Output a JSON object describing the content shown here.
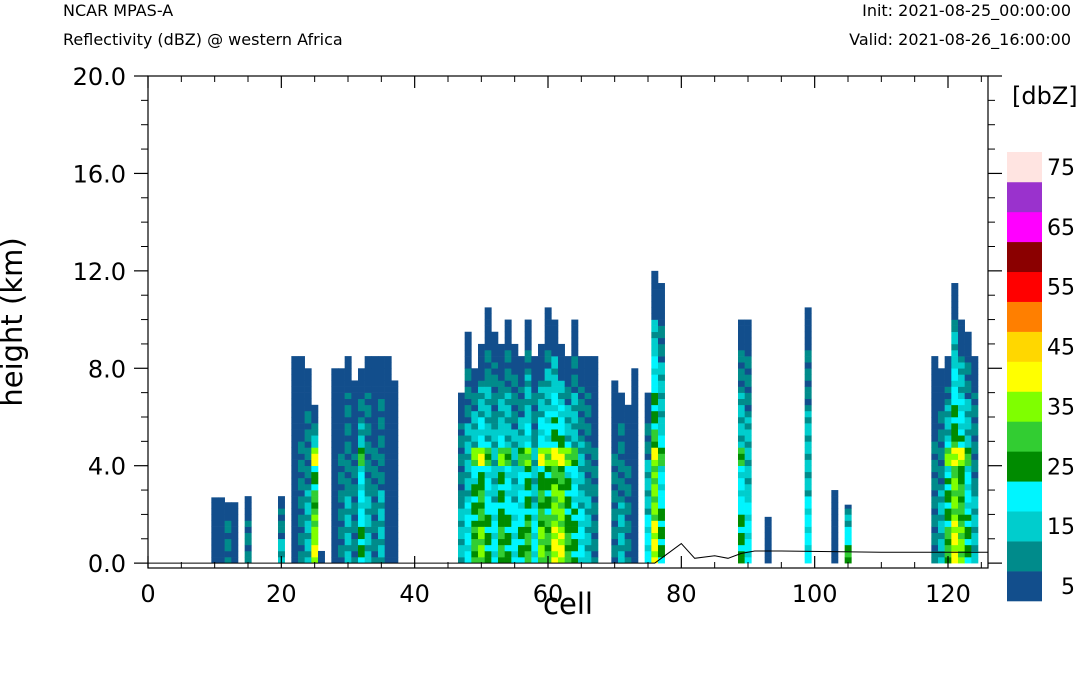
{
  "header": {
    "model": "NCAR MPAS-A",
    "field": "Reflectivity (dBZ) @ western Africa",
    "init": "Init: 2021-08-25_00:00:00",
    "valid": "Valid: 2021-08-26_16:00:00"
  },
  "chart_data": {
    "type": "heatmap",
    "title": "Reflectivity (dBZ) @ western Africa",
    "xlabel": "cell",
    "ylabel": "height (km)",
    "xlim": [
      0,
      126
    ],
    "ylim": [
      -0.2,
      20.0
    ],
    "x_ticks": [
      "0",
      "20",
      "40",
      "60",
      "80",
      "100",
      "120"
    ],
    "y_ticks": [
      "0.0",
      "4.0",
      "8.0",
      "12.0",
      "16.0",
      "20.0"
    ],
    "colorbar": {
      "title": "[dbZ]",
      "levels": [
        "5",
        "15",
        "25",
        "35",
        "45",
        "55",
        "65",
        "75"
      ],
      "colors": [
        "#124e8c",
        "#008b8b",
        "#00cdcd",
        "#00f5ff",
        "#008b00",
        "#32cd32",
        "#7fff00",
        "#ffff00",
        "#ffd700",
        "#ff7f00",
        "#ff0000",
        "#8b0000",
        "#ff00ff",
        "#9a32cd",
        "#ffe4e1"
      ]
    },
    "terrain_km": [
      [
        0,
        0
      ],
      [
        76,
        0
      ],
      [
        77,
        0.2
      ],
      [
        80,
        0.8
      ],
      [
        82,
        0.2
      ],
      [
        85,
        0.3
      ],
      [
        87,
        0.2
      ],
      [
        89,
        0.4
      ],
      [
        91,
        0.5
      ],
      [
        95,
        0.5
      ],
      [
        110,
        0.45
      ],
      [
        126,
        0.45
      ]
    ],
    "columns": [
      {
        "x": 10,
        "top": 2.7,
        "core": 0
      },
      {
        "x": 11,
        "top": 2.7,
        "core": 0
      },
      {
        "x": 12,
        "top": 2.6,
        "core": 1
      },
      {
        "x": 13,
        "top": 2.5,
        "core": 0
      },
      {
        "x": 15,
        "top": 2.8,
        "core": 1
      },
      {
        "x": 20,
        "top": 2.8,
        "core": 2
      },
      {
        "x": 22,
        "top": 8.5,
        "core": 0
      },
      {
        "x": 23,
        "top": 8.5,
        "core": 1
      },
      {
        "x": 24,
        "top": 8.0,
        "core": 2
      },
      {
        "x": 25,
        "top": 6.5,
        "core": 7
      },
      {
        "x": 26,
        "top": 0.6,
        "core": 0
      },
      {
        "x": 28,
        "top": 8.0,
        "core": 0
      },
      {
        "x": 29,
        "top": 8.0,
        "core": 1
      },
      {
        "x": 30,
        "top": 8.5,
        "core": 2
      },
      {
        "x": 31,
        "top": 7.5,
        "core": 1
      },
      {
        "x": 32,
        "top": 8.0,
        "core": 4
      },
      {
        "x": 33,
        "top": 8.5,
        "core": 2
      },
      {
        "x": 34,
        "top": 8.5,
        "core": 1
      },
      {
        "x": 35,
        "top": 8.5,
        "core": 2
      },
      {
        "x": 36,
        "top": 8.5,
        "core": 0
      },
      {
        "x": 37,
        "top": 7.5,
        "core": 0
      },
      {
        "x": 47,
        "top": 7.0,
        "core": 2
      },
      {
        "x": 48,
        "top": 9.5,
        "core": 3
      },
      {
        "x": 49,
        "top": 8.0,
        "core": 5
      },
      {
        "x": 50,
        "top": 9.0,
        "core": 6
      },
      {
        "x": 51,
        "top": 10.5,
        "core": 4
      },
      {
        "x": 52,
        "top": 9.5,
        "core": 3
      },
      {
        "x": 53,
        "top": 9.0,
        "core": 5
      },
      {
        "x": 54,
        "top": 10.0,
        "core": 4
      },
      {
        "x": 55,
        "top": 9.0,
        "core": 3
      },
      {
        "x": 56,
        "top": 8.5,
        "core": 4
      },
      {
        "x": 57,
        "top": 10.0,
        "core": 5
      },
      {
        "x": 58,
        "top": 8.5,
        "core": 3
      },
      {
        "x": 59,
        "top": 9.0,
        "core": 6
      },
      {
        "x": 60,
        "top": 10.5,
        "core": 5
      },
      {
        "x": 61,
        "top": 10.0,
        "core": 7
      },
      {
        "x": 62,
        "top": 9.0,
        "core": 7
      },
      {
        "x": 63,
        "top": 8.5,
        "core": 5
      },
      {
        "x": 64,
        "top": 10.0,
        "core": 4
      },
      {
        "x": 65,
        "top": 8.5,
        "core": 3
      },
      {
        "x": 66,
        "top": 8.5,
        "core": 2
      },
      {
        "x": 67,
        "top": 8.5,
        "core": 1
      },
      {
        "x": 70,
        "top": 7.5,
        "core": 1
      },
      {
        "x": 71,
        "top": 7.0,
        "core": 2
      },
      {
        "x": 72,
        "top": 6.5,
        "core": 1
      },
      {
        "x": 73,
        "top": 8.0,
        "core": 0
      },
      {
        "x": 75,
        "top": 7.0,
        "core": 3
      },
      {
        "x": 76,
        "top": 12.0,
        "core": 7
      },
      {
        "x": 77,
        "top": 11.5,
        "core": 4
      },
      {
        "x": 89,
        "top": 10.0,
        "core": 4
      },
      {
        "x": 90,
        "top": 10.0,
        "core": 3
      },
      {
        "x": 93,
        "top": 1.9,
        "core": 0
      },
      {
        "x": 99,
        "top": 10.5,
        "core": 3
      },
      {
        "x": 103,
        "top": 3.0,
        "core": 0
      },
      {
        "x": 105,
        "top": 2.4,
        "core": 5
      },
      {
        "x": 118,
        "top": 8.5,
        "core": 1
      },
      {
        "x": 119,
        "top": 8.0,
        "core": 2
      },
      {
        "x": 120,
        "top": 8.5,
        "core": 5
      },
      {
        "x": 121,
        "top": 11.5,
        "core": 7
      },
      {
        "x": 122,
        "top": 10.0,
        "core": 6
      },
      {
        "x": 123,
        "top": 9.5,
        "core": 4
      },
      {
        "x": 124,
        "top": 8.5,
        "core": 2
      }
    ]
  }
}
